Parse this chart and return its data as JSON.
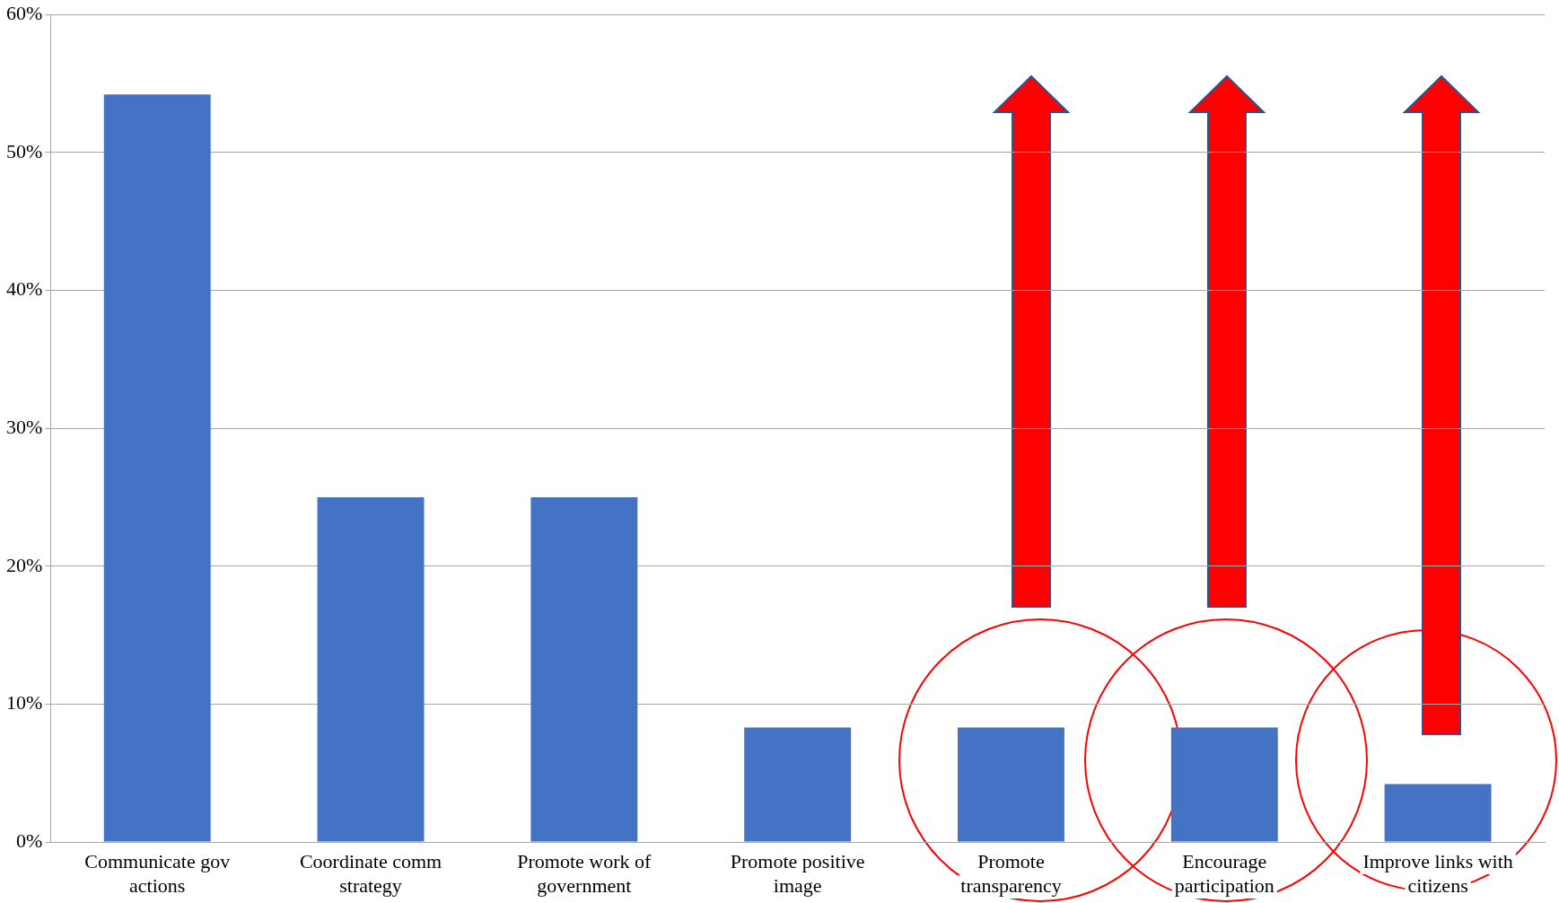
{
  "chart_data": {
    "type": "bar",
    "categories": [
      "Communicate gov actions",
      "Coordinate comm strategy",
      "Promote work of government",
      "Promote positive image",
      "Promote transparency",
      "Encourage participation",
      "Improve links with citizens"
    ],
    "values": [
      54.2,
      25,
      25,
      8.3,
      8.3,
      8.3,
      4.2
    ],
    "color": "#4472c4",
    "ylim": [
      0,
      60
    ],
    "yticks": [
      {
        "value": 0,
        "label": "0%"
      },
      {
        "value": 10,
        "label": "10%"
      },
      {
        "value": 20,
        "label": "20%"
      },
      {
        "value": 30,
        "label": "30%"
      },
      {
        "value": 40,
        "label": "40%"
      },
      {
        "value": 50,
        "label": "50%"
      },
      {
        "value": 60,
        "label": "60%"
      }
    ],
    "grid": "y"
  }
}
